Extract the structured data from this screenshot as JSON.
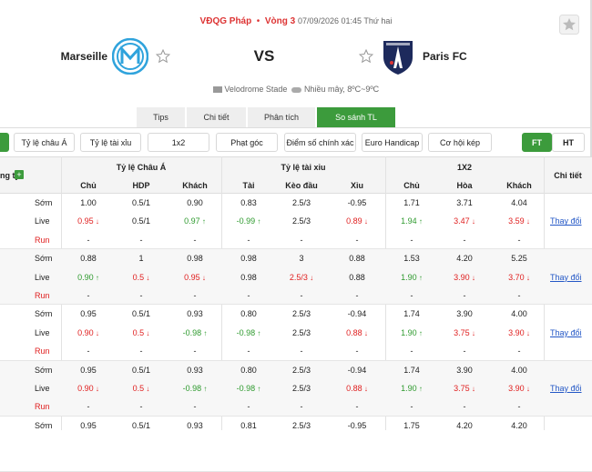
{
  "header": {
    "league": "VĐQG Pháp",
    "round": "Vòng 3",
    "datetime": "07/09/2026 01:45 Thứ hai",
    "home": "Marseille",
    "vs": "VS",
    "away": "Paris FC",
    "venue": "Velodrome Stade",
    "weather": "Nhiều mây, 8ºC~9ºC"
  },
  "tabs": [
    "Tips",
    "Chi tiết",
    "Phân tích",
    "So sánh TL"
  ],
  "active_tab": 3,
  "filters": [
    "Tỷ lệ châu Á",
    "Tỷ lệ tài xỉu",
    "1x2",
    "Phạt góc",
    "Điểm số chính xác",
    "Euro Handicap",
    "Cơ hội kép"
  ],
  "periods": [
    "FT",
    "HT"
  ],
  "active_period": 0,
  "table": {
    "company_header": "ng ty",
    "groups": [
      "Tỷ lệ Châu Á",
      "Tỷ lệ tài xỉu",
      "1X2",
      "Chi tiết"
    ],
    "columns": [
      "Chủ",
      "HDP",
      "Khách",
      "Tài",
      "Kèo đầu",
      "Xỉu",
      "Chủ",
      "Hòa",
      "Khách"
    ],
    "link_text": "Thay đổi",
    "blocks": [
      {
        "rows": [
          {
            "label": "Sớm",
            "cells": [
              "1.00",
              "0.5/1",
              "0.90",
              "0.83",
              "2.5/3",
              "-0.95",
              "1.71",
              "3.71",
              "4.04"
            ]
          },
          {
            "label": "Live",
            "cells": [
              {
                "text": "0.95",
                "trend": "down"
              },
              "0.5/1",
              {
                "text": "0.97",
                "trend": "up"
              },
              {
                "text": "-0.99",
                "trend": "up"
              },
              "2.5/3",
              {
                "text": "0.89",
                "trend": "down"
              },
              {
                "text": "1.94",
                "trend": "up"
              },
              {
                "text": "3.47",
                "trend": "down"
              },
              {
                "text": "3.59",
                "trend": "down"
              }
            ]
          },
          {
            "label": "Run",
            "cells": [
              "-",
              "-",
              "-",
              "-",
              "-",
              "-",
              "-",
              "-",
              "-"
            ]
          }
        ]
      },
      {
        "rows": [
          {
            "label": "Sớm",
            "cells": [
              "0.88",
              "1",
              "0.98",
              "0.98",
              "3",
              "0.88",
              "1.53",
              "4.20",
              "5.25"
            ]
          },
          {
            "label": "Live",
            "cells": [
              {
                "text": "0.90",
                "trend": "up"
              },
              {
                "text": "0.5",
                "trend": "down"
              },
              {
                "text": "0.95",
                "trend": "down"
              },
              "0.98",
              {
                "text": "2.5/3",
                "trend": "down"
              },
              "0.88",
              {
                "text": "1.90",
                "trend": "up"
              },
              {
                "text": "3.90",
                "trend": "down"
              },
              {
                "text": "3.70",
                "trend": "down"
              }
            ]
          },
          {
            "label": "Run",
            "cells": [
              "-",
              "-",
              "-",
              "-",
              "-",
              "-",
              "-",
              "-",
              "-"
            ]
          }
        ]
      },
      {
        "rows": [
          {
            "label": "Sớm",
            "cells": [
              "0.95",
              "0.5/1",
              "0.93",
              "0.80",
              "2.5/3",
              "-0.94",
              "1.74",
              "3.90",
              "4.00"
            ]
          },
          {
            "label": "Live",
            "cells": [
              {
                "text": "0.90",
                "trend": "down"
              },
              {
                "text": "0.5",
                "trend": "down"
              },
              {
                "text": "-0.98",
                "trend": "up"
              },
              {
                "text": "-0.98",
                "trend": "up"
              },
              "2.5/3",
              {
                "text": "0.88",
                "trend": "down"
              },
              {
                "text": "1.90",
                "trend": "up"
              },
              {
                "text": "3.75",
                "trend": "down"
              },
              {
                "text": "3.90",
                "trend": "down"
              }
            ]
          },
          {
            "label": "Run",
            "cells": [
              "-",
              "-",
              "-",
              "-",
              "-",
              "-",
              "-",
              "-",
              "-"
            ]
          }
        ]
      },
      {
        "rows": [
          {
            "label": "Sớm",
            "cells": [
              "0.95",
              "0.5/1",
              "0.93",
              "0.80",
              "2.5/3",
              "-0.94",
              "1.74",
              "3.90",
              "4.00"
            ]
          },
          {
            "label": "Live",
            "cells": [
              {
                "text": "0.90",
                "trend": "down"
              },
              {
                "text": "0.5",
                "trend": "down"
              },
              {
                "text": "-0.98",
                "trend": "up"
              },
              {
                "text": "-0.98",
                "trend": "up"
              },
              "2.5/3",
              {
                "text": "0.88",
                "trend": "down"
              },
              {
                "text": "1.90",
                "trend": "up"
              },
              {
                "text": "3.75",
                "trend": "down"
              },
              {
                "text": "3.90",
                "trend": "down"
              }
            ]
          },
          {
            "label": "Run",
            "cells": [
              "-",
              "-",
              "-",
              "-",
              "-",
              "-",
              "-",
              "-",
              "-"
            ]
          }
        ]
      },
      {
        "rows": [
          {
            "label": "Sớm",
            "cells": [
              "0.95",
              "0.5/1",
              "0.93",
              "0.81",
              "2.5/3",
              "-0.95",
              "1.75",
              "4.20",
              "4.20"
            ]
          }
        ]
      }
    ]
  }
}
